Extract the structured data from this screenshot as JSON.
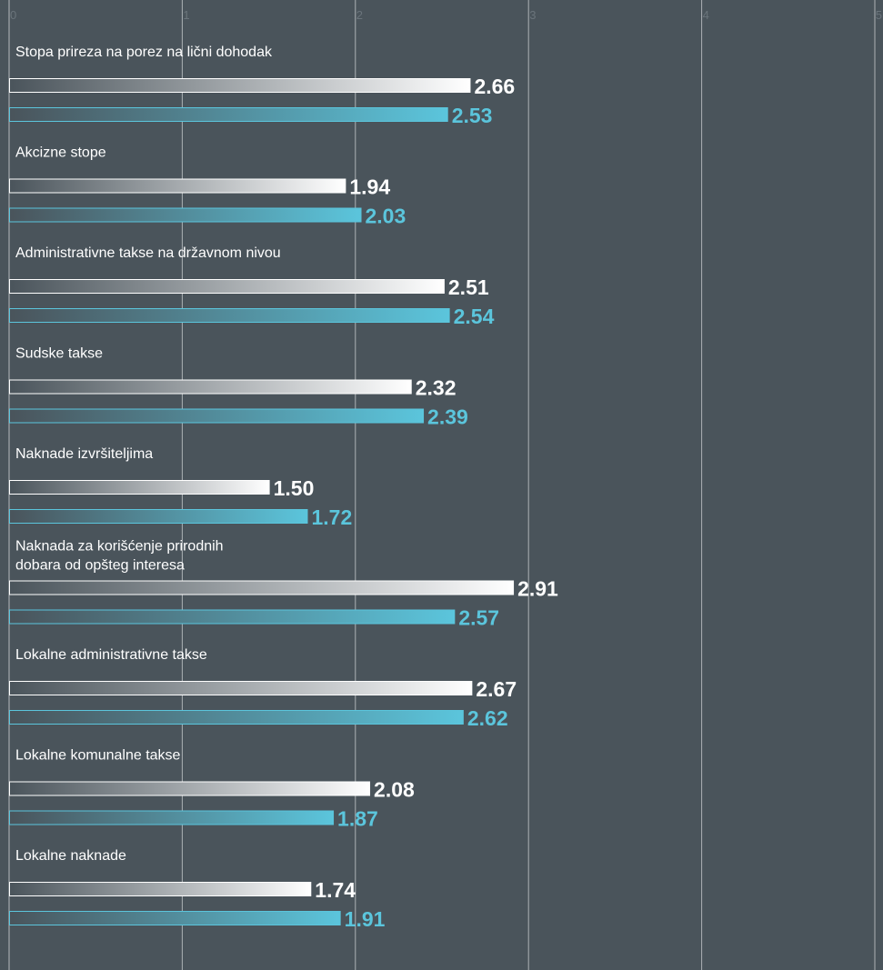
{
  "chart_data": {
    "type": "bar",
    "orientation": "horizontal",
    "xlim": [
      0,
      5
    ],
    "x_ticks": [
      "0",
      "1",
      "2",
      "3",
      "4",
      "5"
    ],
    "grid": true,
    "categories": [
      [
        "Stopa prireza na porez na lični dohodak"
      ],
      [
        "Akcizne stope"
      ],
      [
        "Administrativne takse na državnom nivou"
      ],
      [
        "Sudske takse"
      ],
      [
        "Naknade izvršiteljima"
      ],
      [
        "Naknada za korišćenje prirodnih",
        "dobara od opšteg interesa"
      ],
      [
        "Lokalne administrativne takse"
      ],
      [
        "Lokalne komunalne takse"
      ],
      [
        "Lokalne naknade"
      ]
    ],
    "series": [
      {
        "values": [
          2.66,
          1.94,
          2.51,
          2.32,
          1.5,
          2.91,
          2.67,
          2.08,
          1.74
        ],
        "labels": [
          "2.66",
          "1.94",
          "2.51",
          "2.32",
          "1.50",
          "2.91",
          "2.67",
          "2.08",
          "1.74"
        ],
        "color": "#ffffff"
      },
      {
        "values": [
          2.53,
          2.03,
          2.54,
          2.39,
          1.72,
          2.57,
          2.62,
          1.87,
          1.91
        ],
        "labels": [
          "2.53",
          "2.03",
          "2.54",
          "2.39",
          "1.72",
          "2.57",
          "2.62",
          "1.87",
          "1.91"
        ],
        "color": "#5bc5dc"
      }
    ],
    "colors": {
      "background": "#4a545b",
      "grid": "#ffffff",
      "tick": "#6a747b"
    }
  }
}
